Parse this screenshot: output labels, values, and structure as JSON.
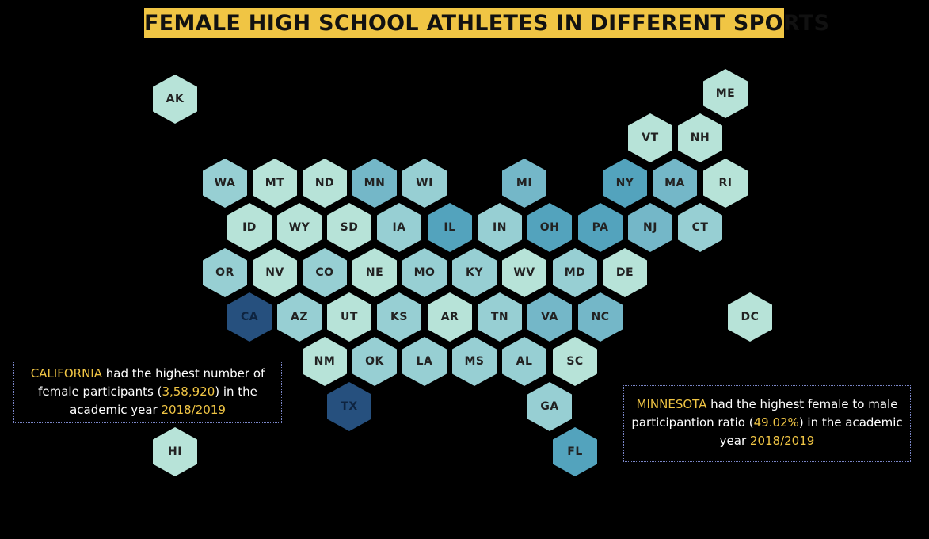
{
  "title": "FEMALE HIGH SCHOOL ATHLETES IN DIFFERENT SPORTS",
  "colors": {
    "level1": "#b7e3d8",
    "level2": "#97cfd3",
    "level3": "#74b7c8",
    "level4": "#53a3bd",
    "level5": "#26507e",
    "text_highlight": "#f0c544",
    "title_bg": "#f0c544"
  },
  "states": [
    {
      "code": "AK",
      "level": 1
    },
    {
      "code": "ME",
      "level": 1
    },
    {
      "code": "VT",
      "level": 1
    },
    {
      "code": "NH",
      "level": 1
    },
    {
      "code": "WA",
      "level": 2
    },
    {
      "code": "MT",
      "level": 1
    },
    {
      "code": "ND",
      "level": 1
    },
    {
      "code": "MN",
      "level": 3
    },
    {
      "code": "WI",
      "level": 2
    },
    {
      "code": "MI",
      "level": 3
    },
    {
      "code": "NY",
      "level": 4
    },
    {
      "code": "MA",
      "level": 3
    },
    {
      "code": "RI",
      "level": 1
    },
    {
      "code": "ID",
      "level": 1
    },
    {
      "code": "WY",
      "level": 1
    },
    {
      "code": "SD",
      "level": 1
    },
    {
      "code": "IA",
      "level": 2
    },
    {
      "code": "IL",
      "level": 4
    },
    {
      "code": "IN",
      "level": 2
    },
    {
      "code": "OH",
      "level": 4
    },
    {
      "code": "PA",
      "level": 4
    },
    {
      "code": "NJ",
      "level": 3
    },
    {
      "code": "CT",
      "level": 2
    },
    {
      "code": "OR",
      "level": 2
    },
    {
      "code": "NV",
      "level": 1
    },
    {
      "code": "CO",
      "level": 2
    },
    {
      "code": "NE",
      "level": 1
    },
    {
      "code": "MO",
      "level": 2
    },
    {
      "code": "KY",
      "level": 2
    },
    {
      "code": "WV",
      "level": 1
    },
    {
      "code": "MD",
      "level": 2
    },
    {
      "code": "DE",
      "level": 1
    },
    {
      "code": "CA",
      "level": 5
    },
    {
      "code": "AZ",
      "level": 2
    },
    {
      "code": "UT",
      "level": 1
    },
    {
      "code": "KS",
      "level": 2
    },
    {
      "code": "AR",
      "level": 1
    },
    {
      "code": "TN",
      "level": 2
    },
    {
      "code": "VA",
      "level": 3
    },
    {
      "code": "NC",
      "level": 3
    },
    {
      "code": "DC",
      "level": 1
    },
    {
      "code": "NM",
      "level": 1
    },
    {
      "code": "OK",
      "level": 2
    },
    {
      "code": "LA",
      "level": 2
    },
    {
      "code": "MS",
      "level": 2
    },
    {
      "code": "AL",
      "level": 2
    },
    {
      "code": "SC",
      "level": 1
    },
    {
      "code": "TX",
      "level": 5
    },
    {
      "code": "GA",
      "level": 2
    },
    {
      "code": "HI",
      "level": 1
    },
    {
      "code": "FL",
      "level": 4
    }
  ],
  "note_left": {
    "state": "CALIFORNIA",
    "text1": " had the highest number of female participants (",
    "value": "3,58,920",
    "text2": ") in the academic year ",
    "year": "2018/2019"
  },
  "note_right": {
    "state": "MINNESOTA",
    "text1": " had the highest female to male participantion ratio (",
    "value": "49.02%",
    "text2": ") in the academic year ",
    "year": "2018/2019"
  }
}
